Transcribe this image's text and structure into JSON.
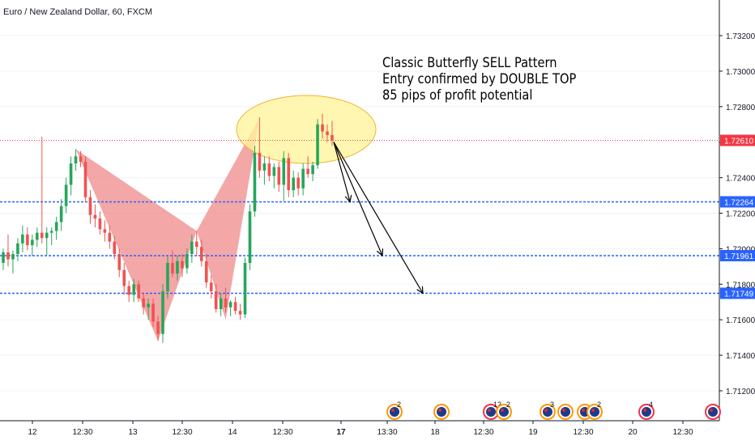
{
  "chart_data": {
    "type": "candlestick",
    "title": "Euro / New Zealand Dollar, 60, FXCM",
    "annotations": [
      "Classic Butterfly SELL Pattern",
      "Entry confirmed by DOUBLE TOP",
      "85 pips of profit potential"
    ],
    "y_ticks": [
      1.712,
      1.714,
      1.716,
      1.718,
      1.72,
      1.722,
      1.724,
      1.726,
      1.728,
      1.73,
      1.732
    ],
    "y_tick_labels": [
      "1.71200",
      "1.71400",
      "1.71600",
      "1.71800",
      "1.72000",
      "1.72200",
      "1.72400",
      "1.72600",
      "1.72800",
      "1.73000",
      "1.73200"
    ],
    "ylim": [
      1.71,
      1.7335
    ],
    "price_lines": [
      {
        "value": 1.7261,
        "label": "1.72610",
        "color": "#f23645",
        "style": "dotted"
      },
      {
        "value": 1.72264,
        "label": "1.72264",
        "color": "#2962ff",
        "style": "dashed"
      },
      {
        "value": 1.71961,
        "label": "1.71961",
        "color": "#2962ff",
        "style": "dashed"
      },
      {
        "value": 1.71749,
        "label": "1.71749",
        "color": "#2962ff",
        "style": "dashed"
      }
    ],
    "x_ticks": [
      "12",
      "12:30",
      "13",
      "12:30",
      "14",
      "12:30",
      "17",
      "13:30",
      "18",
      "12:30",
      "19",
      "12:30",
      "20",
      "12:30"
    ],
    "event_badges": [
      "2",
      "12",
      "2",
      "3",
      "2",
      "4"
    ],
    "colors": {
      "up": "#26a65b",
      "down": "#ef5350",
      "pattern": "#ef8a8a",
      "highlight": "#fff59d"
    },
    "candles": [
      [
        1.7192,
        1.72,
        1.7188,
        1.7198
      ],
      [
        1.7198,
        1.7208,
        1.719,
        1.7194
      ],
      [
        1.7194,
        1.7199,
        1.7186,
        1.7197
      ],
      [
        1.7197,
        1.7206,
        1.7193,
        1.7203
      ],
      [
        1.7203,
        1.7213,
        1.7198,
        1.7208
      ],
      [
        1.7208,
        1.7212,
        1.7199,
        1.7202
      ],
      [
        1.7202,
        1.7208,
        1.7196,
        1.7205
      ],
      [
        1.7205,
        1.7212,
        1.7201,
        1.7209
      ],
      [
        1.7209,
        1.7263,
        1.7203,
        1.7206
      ],
      [
        1.7206,
        1.7212,
        1.7196,
        1.7209
      ],
      [
        1.7209,
        1.7212,
        1.7202,
        1.721
      ],
      [
        1.721,
        1.7218,
        1.7205,
        1.7215
      ],
      [
        1.7215,
        1.7228,
        1.721,
        1.7224
      ],
      [
        1.7224,
        1.724,
        1.722,
        1.7236
      ],
      [
        1.7236,
        1.7252,
        1.723,
        1.7248
      ],
      [
        1.7248,
        1.7256,
        1.7244,
        1.7252
      ],
      [
        1.7252,
        1.7255,
        1.7246,
        1.7249
      ],
      [
        1.7249,
        1.7252,
        1.7226,
        1.7229
      ],
      [
        1.7229,
        1.7233,
        1.7214,
        1.7219
      ],
      [
        1.7219,
        1.7225,
        1.7212,
        1.7217
      ],
      [
        1.7217,
        1.7221,
        1.7208,
        1.7211
      ],
      [
        1.7211,
        1.7216,
        1.7204,
        1.7209
      ],
      [
        1.7209,
        1.7213,
        1.72,
        1.7204
      ],
      [
        1.7204,
        1.7207,
        1.7194,
        1.7197
      ],
      [
        1.7197,
        1.72,
        1.7184,
        1.7188
      ],
      [
        1.7188,
        1.7192,
        1.7174,
        1.7179
      ],
      [
        1.7179,
        1.7182,
        1.717,
        1.7174
      ],
      [
        1.7174,
        1.7183,
        1.717,
        1.718
      ],
      [
        1.718,
        1.7182,
        1.717,
        1.7172
      ],
      [
        1.7172,
        1.7175,
        1.7163,
        1.7167
      ],
      [
        1.7167,
        1.7172,
        1.716,
        1.7169
      ],
      [
        1.7169,
        1.7172,
        1.7156,
        1.7159
      ],
      [
        1.7159,
        1.7162,
        1.7148,
        1.7152
      ],
      [
        1.7152,
        1.718,
        1.7147,
        1.7176
      ],
      [
        1.7176,
        1.7196,
        1.7172,
        1.7192
      ],
      [
        1.7192,
        1.7199,
        1.7184,
        1.7186
      ],
      [
        1.7186,
        1.7196,
        1.7182,
        1.7193
      ],
      [
        1.7193,
        1.7197,
        1.7184,
        1.7189
      ],
      [
        1.7189,
        1.72,
        1.7186,
        1.7197
      ],
      [
        1.7197,
        1.7208,
        1.7192,
        1.7204
      ],
      [
        1.7204,
        1.721,
        1.7196,
        1.7201
      ],
      [
        1.7201,
        1.7205,
        1.719,
        1.7193
      ],
      [
        1.7193,
        1.7197,
        1.7178,
        1.7181
      ],
      [
        1.7181,
        1.7185,
        1.7172,
        1.7176
      ],
      [
        1.7176,
        1.718,
        1.7164,
        1.7166
      ],
      [
        1.7166,
        1.7175,
        1.7162,
        1.7172
      ],
      [
        1.7172,
        1.7178,
        1.7164,
        1.7167
      ],
      [
        1.7167,
        1.7171,
        1.7162,
        1.717
      ],
      [
        1.717,
        1.7173,
        1.7163,
        1.7165
      ],
      [
        1.7165,
        1.7169,
        1.716,
        1.7163
      ],
      [
        1.7163,
        1.7195,
        1.7161,
        1.7192
      ],
      [
        1.7192,
        1.7225,
        1.7188,
        1.7221
      ],
      [
        1.7221,
        1.7258,
        1.7218,
        1.7254
      ],
      [
        1.7254,
        1.7274,
        1.724,
        1.7244
      ],
      [
        1.7244,
        1.7252,
        1.7236,
        1.7248
      ],
      [
        1.7248,
        1.7252,
        1.7238,
        1.7241
      ],
      [
        1.7241,
        1.7248,
        1.7234,
        1.7246
      ],
      [
        1.7246,
        1.7249,
        1.7232,
        1.7236
      ],
      [
        1.7236,
        1.7255,
        1.7227,
        1.7251
      ],
      [
        1.7251,
        1.7254,
        1.7229,
        1.7233
      ],
      [
        1.7233,
        1.7244,
        1.7229,
        1.724
      ],
      [
        1.724,
        1.7243,
        1.723,
        1.7234
      ],
      [
        1.7234,
        1.7248,
        1.723,
        1.7245
      ],
      [
        1.7245,
        1.7252,
        1.724,
        1.7242
      ],
      [
        1.7242,
        1.7249,
        1.7238,
        1.7247
      ],
      [
        1.7247,
        1.7273,
        1.7245,
        1.727
      ],
      [
        1.727,
        1.7276,
        1.7262,
        1.7266
      ],
      [
        1.7266,
        1.727,
        1.726,
        1.7264
      ],
      [
        1.7264,
        1.7272,
        1.7258,
        1.7261
      ]
    ]
  }
}
